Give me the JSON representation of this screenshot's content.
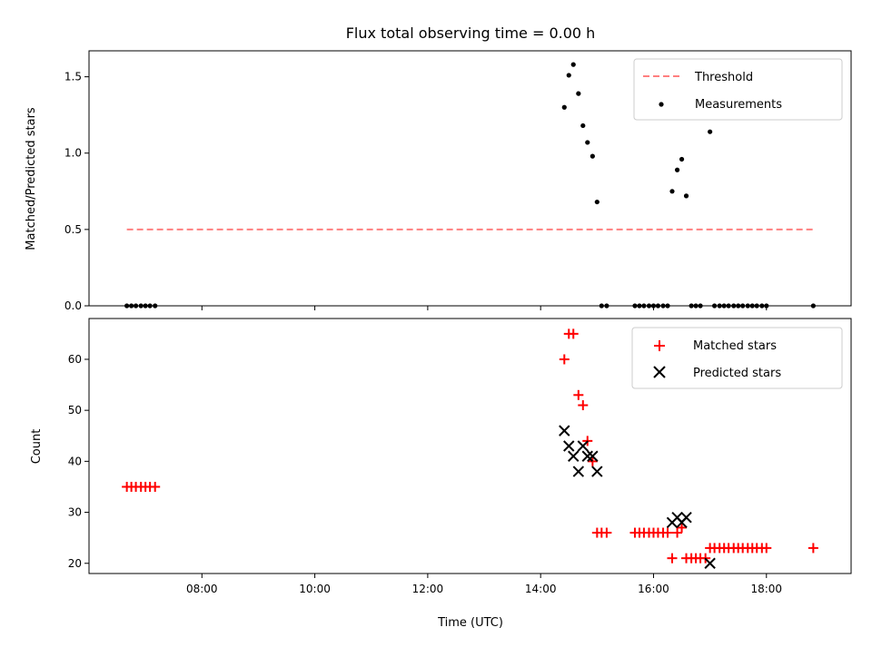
{
  "title": "Flux total observing time = 0.00 h",
  "chart_data": [
    {
      "type": "scatter",
      "ylabel": "Matched/Predicted stars",
      "xlim": [
        6.0,
        19.5
      ],
      "ylim": [
        0,
        1.67
      ],
      "yticks": [
        0.0,
        0.5,
        1.0,
        1.5
      ],
      "ytick_labels": [
        "0.0",
        "0.5",
        "1.0",
        "1.5"
      ],
      "xticks": [
        8,
        10,
        12,
        14,
        16,
        18
      ],
      "legend": "top-right",
      "colors": {
        "threshold": "#ff7f7f",
        "measurements": "#000000"
      },
      "threshold": {
        "name": "Threshold",
        "y": 0.5,
        "x": [
          6.67,
          18.83
        ]
      },
      "measurements": {
        "name": "Measurements",
        "points": [
          [
            6.67,
            0
          ],
          [
            6.75,
            0
          ],
          [
            6.83,
            0
          ],
          [
            6.92,
            0
          ],
          [
            7.0,
            0
          ],
          [
            7.08,
            0
          ],
          [
            7.17,
            0
          ],
          [
            14.42,
            1.3
          ],
          [
            14.5,
            1.51
          ],
          [
            14.58,
            1.58
          ],
          [
            14.67,
            1.39
          ],
          [
            14.75,
            1.18
          ],
          [
            14.83,
            1.07
          ],
          [
            14.92,
            0.98
          ],
          [
            15.0,
            0.68
          ],
          [
            15.08,
            0
          ],
          [
            15.17,
            0
          ],
          [
            15.67,
            0
          ],
          [
            15.75,
            0
          ],
          [
            15.83,
            0
          ],
          [
            15.92,
            0
          ],
          [
            16.0,
            0
          ],
          [
            16.08,
            0
          ],
          [
            16.17,
            0
          ],
          [
            16.25,
            0
          ],
          [
            16.33,
            0.75
          ],
          [
            16.42,
            0.89
          ],
          [
            16.5,
            0.96
          ],
          [
            16.58,
            0.72
          ],
          [
            16.67,
            0
          ],
          [
            16.75,
            0
          ],
          [
            16.83,
            0
          ],
          [
            17.0,
            1.14
          ],
          [
            17.08,
            0
          ],
          [
            17.17,
            0
          ],
          [
            17.25,
            0
          ],
          [
            17.33,
            0
          ],
          [
            17.42,
            0
          ],
          [
            17.5,
            0
          ],
          [
            17.58,
            0
          ],
          [
            17.67,
            0
          ],
          [
            17.75,
            0
          ],
          [
            17.83,
            0
          ],
          [
            17.92,
            0
          ],
          [
            18.0,
            0
          ],
          [
            18.83,
            0
          ]
        ]
      }
    },
    {
      "type": "scatter",
      "xlabel": "Time (UTC)",
      "ylabel": "Count",
      "xlim": [
        6.0,
        19.5
      ],
      "ylim": [
        18,
        68
      ],
      "yticks": [
        20,
        30,
        40,
        50,
        60
      ],
      "ytick_labels": [
        "20",
        "30",
        "40",
        "50",
        "60"
      ],
      "xticks": [
        8,
        10,
        12,
        14,
        16,
        18
      ],
      "xtick_labels": [
        "08:00",
        "10:00",
        "12:00",
        "14:00",
        "16:00",
        "18:00"
      ],
      "legend": "top-right",
      "colors": {
        "matched": "#ff0000",
        "predicted": "#000000"
      },
      "series": [
        {
          "name": "Matched stars",
          "marker": "plus",
          "points": [
            [
              6.67,
              35
            ],
            [
              6.75,
              35
            ],
            [
              6.83,
              35
            ],
            [
              6.92,
              35
            ],
            [
              7.0,
              35
            ],
            [
              7.08,
              35
            ],
            [
              7.17,
              35
            ],
            [
              14.42,
              60
            ],
            [
              14.5,
              65
            ],
            [
              14.58,
              65
            ],
            [
              14.67,
              53
            ],
            [
              14.75,
              51
            ],
            [
              14.83,
              44
            ],
            [
              14.92,
              40
            ],
            [
              15.0,
              26
            ],
            [
              15.08,
              26
            ],
            [
              15.17,
              26
            ],
            [
              15.67,
              26
            ],
            [
              15.75,
              26
            ],
            [
              15.83,
              26
            ],
            [
              15.92,
              26
            ],
            [
              16.0,
              26
            ],
            [
              16.08,
              26
            ],
            [
              16.17,
              26
            ],
            [
              16.25,
              26
            ],
            [
              16.33,
              21
            ],
            [
              16.42,
              26
            ],
            [
              16.5,
              27
            ],
            [
              16.58,
              21
            ],
            [
              16.67,
              21
            ],
            [
              16.75,
              21
            ],
            [
              16.83,
              21
            ],
            [
              16.92,
              21
            ],
            [
              17.0,
              23
            ],
            [
              17.08,
              23
            ],
            [
              17.17,
              23
            ],
            [
              17.25,
              23
            ],
            [
              17.33,
              23
            ],
            [
              17.42,
              23
            ],
            [
              17.5,
              23
            ],
            [
              17.58,
              23
            ],
            [
              17.67,
              23
            ],
            [
              17.75,
              23
            ],
            [
              17.83,
              23
            ],
            [
              17.92,
              23
            ],
            [
              18.0,
              23
            ],
            [
              18.83,
              23
            ]
          ]
        },
        {
          "name": "Predicted stars",
          "marker": "x",
          "points": [
            [
              14.42,
              46
            ],
            [
              14.5,
              43
            ],
            [
              14.58,
              41
            ],
            [
              14.67,
              38
            ],
            [
              14.75,
              43
            ],
            [
              14.83,
              41
            ],
            [
              14.92,
              41
            ],
            [
              15.0,
              38
            ],
            [
              16.33,
              28
            ],
            [
              16.42,
              29
            ],
            [
              16.5,
              28
            ],
            [
              16.58,
              29
            ],
            [
              17.0,
              20
            ]
          ]
        }
      ]
    }
  ]
}
